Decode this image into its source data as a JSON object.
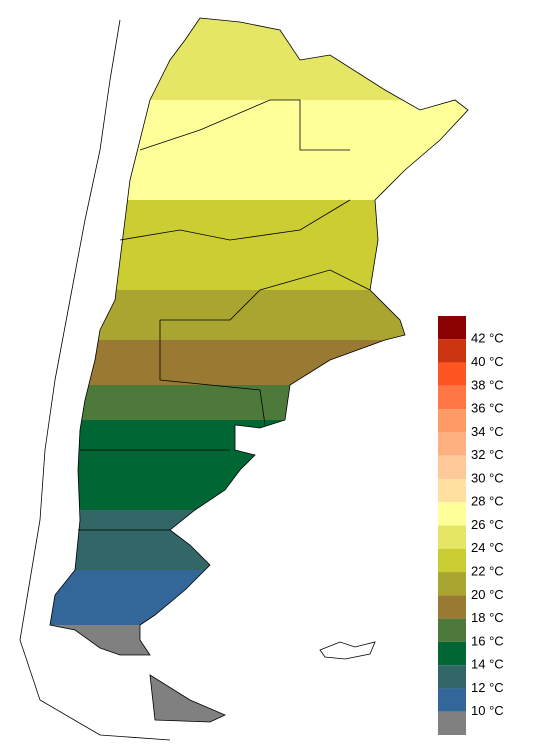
{
  "legend": {
    "labels": [
      "42 °C",
      "40 °C",
      "38 °C",
      "36 °C",
      "34 °C",
      "32 °C",
      "30 °C",
      "28 °C",
      "26 °C",
      "24 °C",
      "22 °C",
      "20 °C",
      "18 °C",
      "16 °C",
      "14 °C",
      "12 °C",
      "10 °C"
    ],
    "colors": [
      "#8b0000",
      "#cc3311",
      "#ff5522",
      "#ff7744",
      "#ff9966",
      "#ffb080",
      "#ffc999",
      "#ffe0a0",
      "#ffff99",
      "#e5e566",
      "#cccc33",
      "#aaa530",
      "#9a7a33",
      "#4d7a3a",
      "#006633",
      "#336666",
      "#336699",
      "#808080"
    ]
  }
}
